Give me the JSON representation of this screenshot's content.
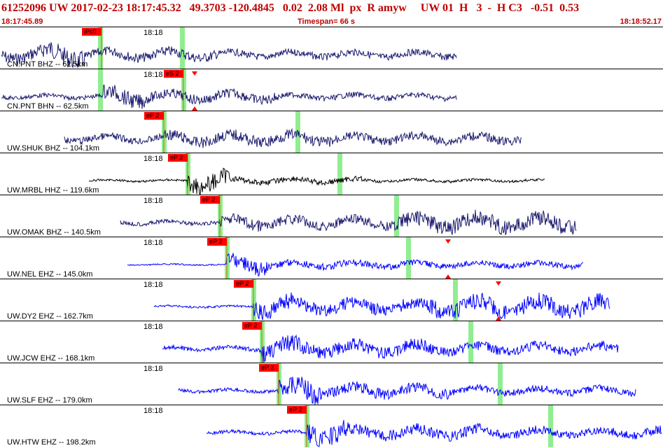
{
  "header": {
    "title": "61252096 UW 2017-02-23 18:17:45.32   49.3703 -120.4845   0.02  2.08 Ml  px  R amyw     UW 01  H   3  -  H C3   -0.51  0.53",
    "start_time": "18:17:45.89",
    "timespan": "Timespan=  66 s",
    "end_time": "18:18:52.17"
  },
  "colors": {
    "header_red": "#c00000",
    "trace_dark": "#1a1a6e",
    "trace_black": "#000000",
    "trace_blue": "#0000ff",
    "pick_red": "#ff0000",
    "marker_green": "#90ee90"
  },
  "traces": [
    {
      "label": "CN.PNT BHZ -- 62.5km",
      "time": "18:18",
      "pick": "iPc0",
      "color": "#1a1a6e"
    },
    {
      "label": "CN.PNT BHN -- 62.5km",
      "time": "18:18",
      "pick": "eS 2",
      "color": "#1a1a6e"
    },
    {
      "label": "UW.SHUK BHZ -- 104.1km",
      "time": "18:18",
      "pick": "eP 2",
      "color": "#1a1a6e"
    },
    {
      "label": "UW.MRBL HHZ -- 119.6km",
      "time": "18:18",
      "pick": "eP 2",
      "color": "#000000"
    },
    {
      "label": "UW.OMAK BHZ -- 140.5km",
      "time": "18:18",
      "pick": "eP 2",
      "color": "#1a1a6e"
    },
    {
      "label": "UW.NEL EHZ -- 145.0km",
      "time": "18:18",
      "pick": "eP 2",
      "color": "#0000ff"
    },
    {
      "label": "UW.DY2 EHZ -- 162.7km",
      "time": "18:18",
      "pick": "eP 2",
      "color": "#0000ff"
    },
    {
      "label": "UW.JCW EHZ -- 168.1km",
      "time": "18:18",
      "pick": "eP 2",
      "color": "#0000ff"
    },
    {
      "label": "UW.SLF EHZ -- 179.0km",
      "time": "18:18",
      "pick": "eP 2",
      "color": "#0000ff"
    },
    {
      "label": "UW.HTW EHZ -- 198.2km",
      "time": "18:18",
      "pick": "eP 2",
      "color": "#0000ff"
    }
  ]
}
